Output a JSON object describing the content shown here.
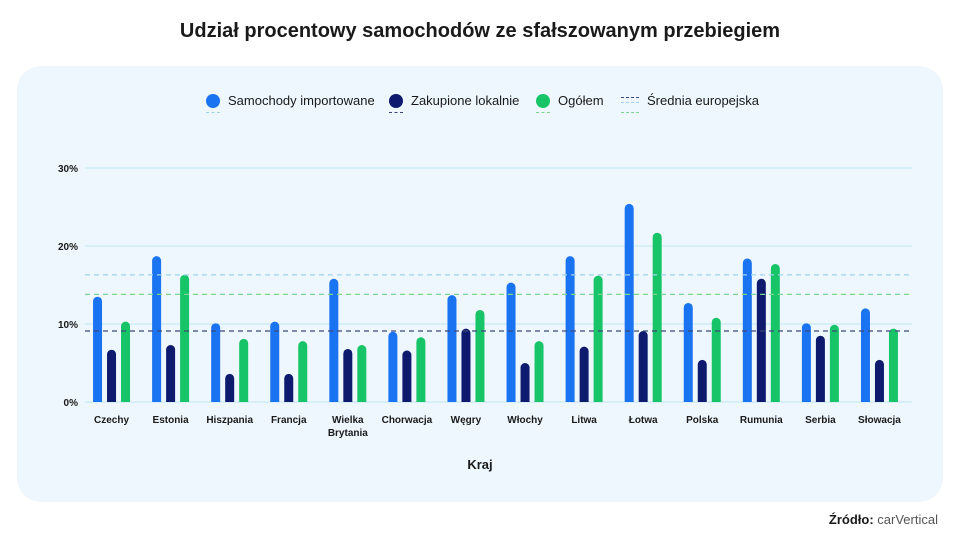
{
  "title": "Udział procentowy samochodów ze sfałszowanym przebiegiem",
  "legend": {
    "imported": "Samochody importowane",
    "local": "Zakupione lokalnie",
    "overall": "Ogółem",
    "average": "Średnia europejska"
  },
  "source": {
    "label": "Źródło:",
    "value": "carVertical"
  },
  "colors": {
    "imported": "#1a73f0",
    "local": "#0d1a6e",
    "overall": "#17c468",
    "avg_imported": "#9fd4ec",
    "avg_local": "#3b4a7a",
    "avg_overall": "#7cd68f",
    "grid": "#bfe6f2",
    "card": "#eef7fd"
  },
  "chart_data": {
    "type": "bar",
    "xlabel": "Kraj",
    "ylabel": "",
    "ylim": [
      0,
      30
    ],
    "yticks": [
      0,
      10,
      20,
      30
    ],
    "ytick_labels": [
      "0%",
      "10%",
      "20%",
      "30%"
    ],
    "categories": [
      "Czechy",
      "Estonia",
      "Hiszpania",
      "Francja",
      "Wielka Brytania",
      "Chorwacja",
      "Węgry",
      "Włochy",
      "Litwa",
      "Łotwa",
      "Polska",
      "Rumunia",
      "Serbia",
      "Słowacja"
    ],
    "category_lines": [
      [
        "Czechy"
      ],
      [
        "Estonia"
      ],
      [
        "Hiszpania"
      ],
      [
        "Francja"
      ],
      [
        "Wielka",
        "Brytania"
      ],
      [
        "Chorwacja"
      ],
      [
        "Węgry"
      ],
      [
        "Włochy"
      ],
      [
        "Litwa"
      ],
      [
        "Łotwa"
      ],
      [
        "Polska"
      ],
      [
        "Rumunia"
      ],
      [
        "Serbia"
      ],
      [
        "Słowacja"
      ]
    ],
    "series": [
      {
        "name": "Samochody importowane",
        "key": "imported",
        "values": [
          13.5,
          18.7,
          10.1,
          10.3,
          15.8,
          9.0,
          13.7,
          15.3,
          18.7,
          25.4,
          12.7,
          18.4,
          10.1,
          12.0
        ]
      },
      {
        "name": "Zakupione lokalnie",
        "key": "local",
        "values": [
          6.7,
          7.3,
          3.6,
          3.6,
          6.8,
          6.6,
          9.4,
          5.0,
          7.1,
          9.1,
          5.4,
          15.8,
          8.5,
          5.4
        ]
      },
      {
        "name": "Ogółem",
        "key": "overall",
        "values": [
          10.3,
          16.3,
          8.1,
          7.8,
          7.3,
          8.3,
          11.8,
          7.8,
          16.2,
          21.7,
          10.8,
          17.7,
          9.9,
          9.4
        ]
      }
    ],
    "averages": [
      {
        "key": "avg_imported",
        "value": 16.3
      },
      {
        "key": "avg_overall",
        "value": 13.8
      },
      {
        "key": "avg_local",
        "value": 9.1
      }
    ],
    "grid": true,
    "legend_position": "top"
  }
}
